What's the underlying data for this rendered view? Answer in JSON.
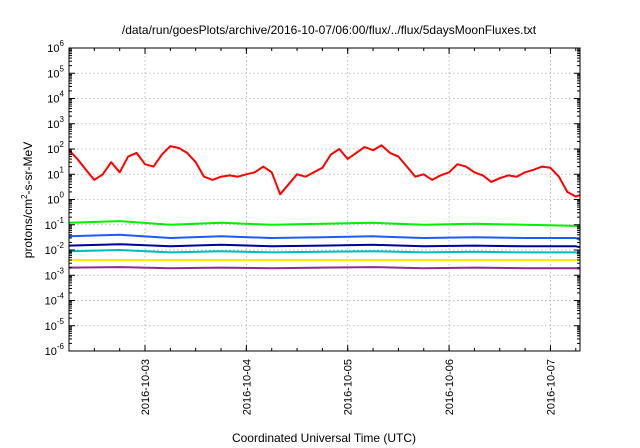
{
  "chart_data": {
    "type": "line",
    "title": "/data/run/goesPlots/archive/2016-10-07/06:00/flux/../flux/5daysMoonFluxes.txt",
    "xlabel": "Coordinated Universal Time (UTC)",
    "ylabel": "protons/cm²-s-sr-MeV",
    "ylabel_parts": {
      "pre": "protons/cm",
      "sup": "2",
      "post": "-s-sr-MeV"
    },
    "yscale": "log",
    "ylim": [
      1e-06,
      1000000.0
    ],
    "y_ticks": [
      {
        "value": 1e-06,
        "base": "10",
        "exp": "-6"
      },
      {
        "value": 1e-05,
        "base": "10",
        "exp": "-5"
      },
      {
        "value": 0.0001,
        "base": "10",
        "exp": "-4"
      },
      {
        "value": 0.001,
        "base": "10",
        "exp": "-3"
      },
      {
        "value": 0.01,
        "base": "10",
        "exp": "-2"
      },
      {
        "value": 0.1,
        "base": "10",
        "exp": "-1"
      },
      {
        "value": 1,
        "base": "10",
        "exp": "0"
      },
      {
        "value": 10,
        "base": "10",
        "exp": "1"
      },
      {
        "value": 100,
        "base": "10",
        "exp": "2"
      },
      {
        "value": 1000,
        "base": "10",
        "exp": "3"
      },
      {
        "value": 10000,
        "base": "10",
        "exp": "4"
      },
      {
        "value": 100000,
        "base": "10",
        "exp": "5"
      },
      {
        "value": 1000000,
        "base": "10",
        "exp": "6"
      }
    ],
    "xlim": [
      "2016-10-02 06:00",
      "2016-10-07 07:00"
    ],
    "x_ticks": [
      "2016-10-03",
      "2016-10-04",
      "2016-10-05",
      "2016-10-06",
      "2016-10-07"
    ],
    "grid": true,
    "series": [
      {
        "color": "#ff0000",
        "x": [
          "2016-10-02 06:00",
          "2016-10-02 08:00",
          "2016-10-02 10:00",
          "2016-10-02 12:00",
          "2016-10-02 14:00",
          "2016-10-02 16:00",
          "2016-10-02 18:00",
          "2016-10-02 20:00",
          "2016-10-02 22:00",
          "2016-10-03 00:00",
          "2016-10-03 02:00",
          "2016-10-03 04:00",
          "2016-10-03 06:00",
          "2016-10-03 08:00",
          "2016-10-03 10:00",
          "2016-10-03 12:00",
          "2016-10-03 14:00",
          "2016-10-03 16:00",
          "2016-10-03 18:00",
          "2016-10-03 20:00",
          "2016-10-03 22:00",
          "2016-10-04 00:00",
          "2016-10-04 02:00",
          "2016-10-04 04:00",
          "2016-10-04 06:00",
          "2016-10-04 08:00",
          "2016-10-04 10:00",
          "2016-10-04 12:00",
          "2016-10-04 14:00",
          "2016-10-04 16:00",
          "2016-10-04 18:00",
          "2016-10-04 20:00",
          "2016-10-04 22:00",
          "2016-10-05 00:00",
          "2016-10-05 02:00",
          "2016-10-05 04:00",
          "2016-10-05 06:00",
          "2016-10-05 08:00",
          "2016-10-05 10:00",
          "2016-10-05 12:00",
          "2016-10-05 14:00",
          "2016-10-05 16:00",
          "2016-10-05 18:00",
          "2016-10-05 20:00",
          "2016-10-05 22:00",
          "2016-10-06 00:00",
          "2016-10-06 02:00",
          "2016-10-06 04:00",
          "2016-10-06 06:00",
          "2016-10-06 08:00",
          "2016-10-06 10:00",
          "2016-10-06 12:00",
          "2016-10-06 14:00",
          "2016-10-06 16:00",
          "2016-10-06 18:00",
          "2016-10-06 20:00",
          "2016-10-06 22:00",
          "2016-10-07 00:00",
          "2016-10-07 02:00",
          "2016-10-07 04:00",
          "2016-10-07 06:00",
          "2016-10-07 07:00"
        ],
        "values": [
          90,
          40,
          15,
          6,
          10,
          30,
          12,
          50,
          70,
          25,
          20,
          60,
          130,
          110,
          70,
          30,
          8,
          6,
          8,
          9,
          8,
          10,
          12,
          20,
          12,
          1.6,
          4,
          10,
          8,
          12,
          18,
          60,
          100,
          40,
          70,
          120,
          90,
          140,
          70,
          50,
          20,
          8,
          10,
          6,
          9,
          12,
          25,
          20,
          12,
          9,
          5,
          7,
          9,
          8,
          12,
          15,
          20,
          18,
          8,
          2,
          1.3,
          1.5
        ]
      },
      {
        "color": "#00ee00",
        "x": [
          "2016-10-02 06:00",
          "2016-10-02 18:00",
          "2016-10-03 06:00",
          "2016-10-03 18:00",
          "2016-10-04 06:00",
          "2016-10-04 18:00",
          "2016-10-05 06:00",
          "2016-10-05 18:00",
          "2016-10-06 06:00",
          "2016-10-06 18:00",
          "2016-10-07 06:00",
          "2016-10-07 07:00"
        ],
        "values": [
          0.12,
          0.14,
          0.1,
          0.12,
          0.1,
          0.11,
          0.12,
          0.1,
          0.11,
          0.1,
          0.09,
          0.08
        ]
      },
      {
        "color": "#1e5aff",
        "x": [
          "2016-10-02 06:00",
          "2016-10-02 18:00",
          "2016-10-03 06:00",
          "2016-10-03 18:00",
          "2016-10-04 06:00",
          "2016-10-04 18:00",
          "2016-10-05 06:00",
          "2016-10-05 18:00",
          "2016-10-06 06:00",
          "2016-10-06 18:00",
          "2016-10-07 06:00",
          "2016-10-07 07:00"
        ],
        "values": [
          0.035,
          0.04,
          0.03,
          0.035,
          0.03,
          0.032,
          0.035,
          0.03,
          0.032,
          0.03,
          0.03,
          0.025
        ]
      },
      {
        "color": "#000099",
        "x": [
          "2016-10-02 06:00",
          "2016-10-02 18:00",
          "2016-10-03 06:00",
          "2016-10-03 18:00",
          "2016-10-04 06:00",
          "2016-10-04 18:00",
          "2016-10-05 06:00",
          "2016-10-05 18:00",
          "2016-10-06 06:00",
          "2016-10-06 18:00",
          "2016-10-07 06:00",
          "2016-10-07 07:00"
        ],
        "values": [
          0.015,
          0.017,
          0.014,
          0.016,
          0.014,
          0.015,
          0.016,
          0.014,
          0.015,
          0.014,
          0.014,
          0.013
        ]
      },
      {
        "color": "#00bcbc",
        "x": [
          "2016-10-02 06:00",
          "2016-10-02 18:00",
          "2016-10-03 06:00",
          "2016-10-03 18:00",
          "2016-10-04 06:00",
          "2016-10-04 18:00",
          "2016-10-05 06:00",
          "2016-10-05 18:00",
          "2016-10-06 06:00",
          "2016-10-06 18:00",
          "2016-10-07 06:00",
          "2016-10-07 07:00"
        ],
        "values": [
          0.009,
          0.01,
          0.008,
          0.009,
          0.008,
          0.0085,
          0.009,
          0.008,
          0.0085,
          0.008,
          0.008,
          0.0075
        ]
      },
      {
        "color": "#ffee00",
        "x": [
          "2016-10-02 06:00",
          "2016-10-07 07:00"
        ],
        "values": [
          0.004,
          0.004
        ]
      },
      {
        "color": "#8e2a8e",
        "x": [
          "2016-10-02 06:00",
          "2016-10-02 18:00",
          "2016-10-03 06:00",
          "2016-10-03 18:00",
          "2016-10-04 06:00",
          "2016-10-04 18:00",
          "2016-10-05 06:00",
          "2016-10-05 18:00",
          "2016-10-06 06:00",
          "2016-10-06 18:00",
          "2016-10-07 06:00",
          "2016-10-07 07:00"
        ],
        "values": [
          0.002,
          0.0021,
          0.0019,
          0.002,
          0.0019,
          0.002,
          0.0021,
          0.0019,
          0.002,
          0.0019,
          0.0019,
          0.0018
        ]
      }
    ]
  }
}
